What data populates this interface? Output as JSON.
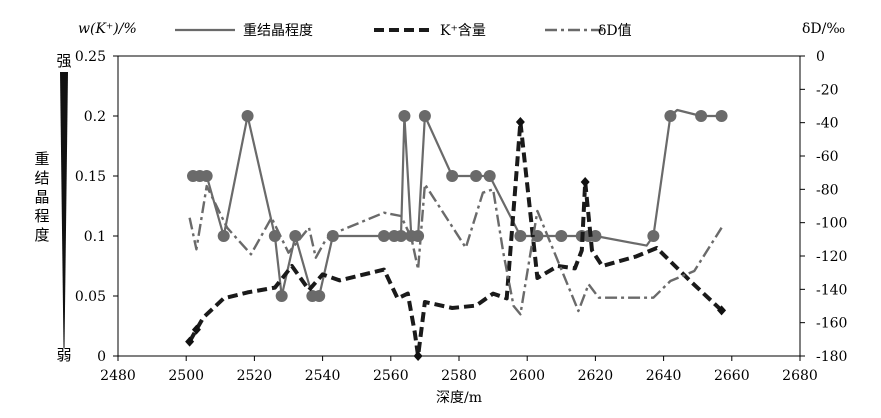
{
  "chart_data": {
    "type": "line",
    "xlabel": "深度/m",
    "ylabel_left": "w(K⁺)/%",
    "ylabel_right": "δD/‰",
    "xlim": [
      2480,
      2680
    ],
    "ylim_left": [
      0,
      0.25
    ],
    "ylim_right": [
      -180,
      0
    ],
    "x_ticks": [
      "2480",
      "2500",
      "2520",
      "2540",
      "2560",
      "2580",
      "2600",
      "2620",
      "2640",
      "2660",
      "2680"
    ],
    "y_left_ticks": [
      "0",
      "0.05",
      "0.1",
      "0.15",
      "0.2",
      "0.25"
    ],
    "y_right_ticks": [
      "0",
      "-20",
      "-40",
      "-60",
      "-80",
      "-100",
      "-120",
      "-140",
      "-160",
      "-180"
    ],
    "legend_position": "top",
    "grid": false,
    "side_scale": {
      "title": "重结晶程度",
      "top_label": "强",
      "bottom_label": "弱"
    },
    "series": [
      {
        "name": "重结晶程度",
        "axis": "left",
        "style": "solid",
        "marker": "circle",
        "color": "#6a6a6a",
        "points": [
          [
            2502,
            0.15,
            1
          ],
          [
            2504,
            0.15,
            1
          ],
          [
            2506,
            0.15,
            1
          ],
          [
            2511,
            0.1,
            1
          ],
          [
            2518,
            0.2,
            1
          ],
          [
            2526,
            0.1,
            1
          ],
          [
            2528,
            0.05,
            1
          ],
          [
            2532,
            0.1,
            1
          ],
          [
            2537,
            0.05,
            1
          ],
          [
            2539,
            0.05,
            1
          ],
          [
            2543,
            0.1,
            1
          ],
          [
            2558,
            0.1,
            1
          ],
          [
            2561,
            0.1,
            1
          ],
          [
            2563,
            0.1,
            1
          ],
          [
            2564,
            0.2,
            1
          ],
          [
            2566,
            0.1,
            1
          ],
          [
            2568,
            0.1,
            1
          ],
          [
            2570,
            0.2,
            1
          ],
          [
            2578,
            0.15,
            1
          ],
          [
            2585,
            0.15,
            1
          ],
          [
            2589,
            0.15,
            1
          ],
          [
            2598,
            0.1,
            1
          ],
          [
            2603,
            0.1,
            1
          ],
          [
            2610,
            0.1,
            1
          ],
          [
            2616,
            0.1,
            1
          ],
          [
            2618,
            0.1,
            1
          ],
          [
            2620,
            0.1,
            1
          ],
          [
            2635,
            0.092,
            0
          ],
          [
            2637,
            0.1,
            1
          ],
          [
            2642,
            0.2,
            1
          ],
          [
            2644,
            0.205,
            0
          ],
          [
            2651,
            0.2,
            1
          ],
          [
            2657,
            0.2,
            1
          ]
        ]
      },
      {
        "name": "K⁺含量",
        "axis": "left",
        "style": "dashed",
        "marker": "diamond",
        "color": "#1a1a1a",
        "points": [
          [
            2501,
            0.012,
            1
          ],
          [
            2503,
            0.022,
            1
          ],
          [
            2505,
            0.032,
            0
          ],
          [
            2511,
            0.048,
            0
          ],
          [
            2518,
            0.053,
            0
          ],
          [
            2526,
            0.057,
            0
          ],
          [
            2531,
            0.075,
            0
          ],
          [
            2536,
            0.055,
            0
          ],
          [
            2540,
            0.068,
            0
          ],
          [
            2545,
            0.063,
            0
          ],
          [
            2558,
            0.072,
            0
          ],
          [
            2562,
            0.048,
            0
          ],
          [
            2565,
            0.052,
            0
          ],
          [
            2567,
            0.02,
            0
          ],
          [
            2568,
            0.0,
            1
          ],
          [
            2570,
            0.045,
            0
          ],
          [
            2578,
            0.04,
            0
          ],
          [
            2585,
            0.042,
            0
          ],
          [
            2590,
            0.052,
            0
          ],
          [
            2594,
            0.048,
            0
          ],
          [
            2598,
            0.195,
            1
          ],
          [
            2603,
            0.065,
            0
          ],
          [
            2609,
            0.075,
            0
          ],
          [
            2614,
            0.073,
            0
          ],
          [
            2616,
            0.088,
            0
          ],
          [
            2617,
            0.145,
            1
          ],
          [
            2619,
            0.088,
            0
          ],
          [
            2622,
            0.075,
            0
          ],
          [
            2632,
            0.083,
            0
          ],
          [
            2638,
            0.09,
            0
          ],
          [
            2648,
            0.062,
            0
          ],
          [
            2657,
            0.038,
            1
          ]
        ]
      },
      {
        "name": "δD值",
        "axis": "right",
        "style": "dashdot",
        "marker": "none",
        "color": "#6a6a6a",
        "points": [
          [
            2501,
            -97
          ],
          [
            2503,
            -116
          ],
          [
            2506,
            -78
          ],
          [
            2512,
            -103
          ],
          [
            2519,
            -119
          ],
          [
            2525,
            -97
          ],
          [
            2530,
            -118
          ],
          [
            2536,
            -103
          ],
          [
            2538,
            -121
          ],
          [
            2541,
            -110
          ],
          [
            2545,
            -105
          ],
          [
            2558,
            -94
          ],
          [
            2563,
            -96
          ],
          [
            2566,
            -109
          ],
          [
            2568,
            -128
          ],
          [
            2570,
            -77
          ],
          [
            2582,
            -115
          ],
          [
            2587,
            -82
          ],
          [
            2590,
            -80
          ],
          [
            2593,
            -118
          ],
          [
            2596,
            -150
          ],
          [
            2598,
            -155
          ],
          [
            2603,
            -93
          ],
          [
            2610,
            -128
          ],
          [
            2615,
            -153
          ],
          [
            2618,
            -137
          ],
          [
            2621,
            -145
          ],
          [
            2637,
            -145
          ],
          [
            2642,
            -135
          ],
          [
            2649,
            -129
          ],
          [
            2657,
            -103
          ]
        ]
      }
    ]
  }
}
